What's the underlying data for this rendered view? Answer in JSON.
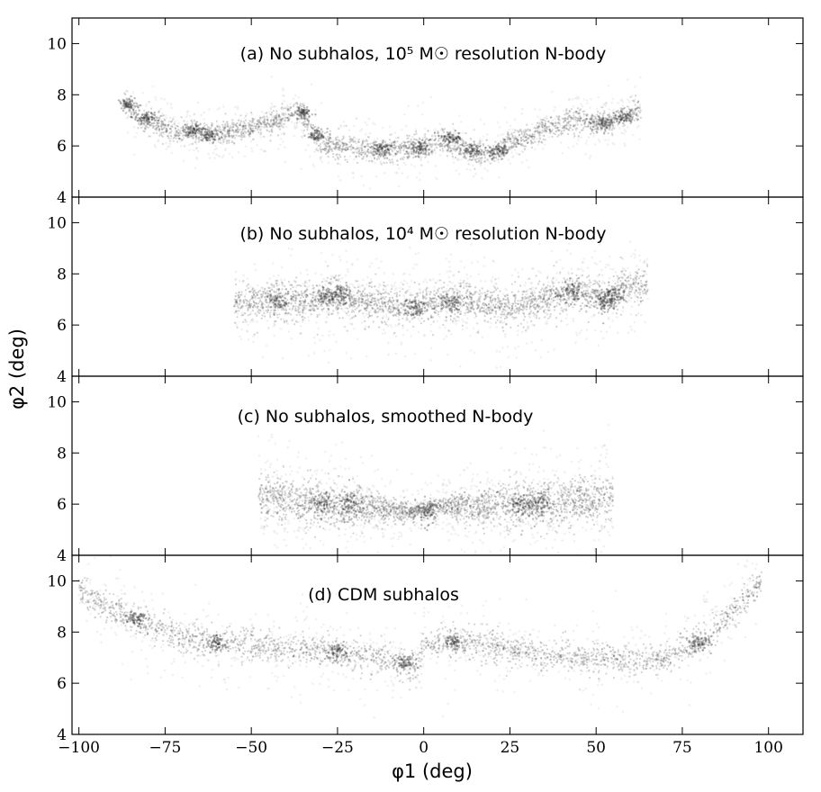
{
  "chart_data": {
    "type": "scatter",
    "xlabel": "φ1 (deg)",
    "ylabel": "φ2 (deg)",
    "xlim": [
      -102,
      110
    ],
    "x_ticks": [
      -100,
      -75,
      -50,
      -25,
      0,
      25,
      50,
      75,
      100
    ],
    "x_tick_labels": [
      "−100",
      "−75",
      "−50",
      "−25",
      "0",
      "25",
      "50",
      "75",
      "100"
    ],
    "grid": false,
    "legend": "none",
    "point_color": "#3a3a3a",
    "panels": [
      {
        "id": "a",
        "title": "(a) No subhalos, 10⁵ M☉ resolution N-body",
        "ylim": [
          4,
          11
        ],
        "y_ticks": [
          4,
          6,
          8,
          10
        ],
        "track": [
          [
            -87,
            7.7
          ],
          [
            -83,
            7.1
          ],
          [
            -78,
            6.9
          ],
          [
            -73,
            6.5
          ],
          [
            -68,
            6.6
          ],
          [
            -60,
            6.5
          ],
          [
            -50,
            6.7
          ],
          [
            -42,
            7.0
          ],
          [
            -36,
            7.4
          ],
          [
            -33,
            6.8
          ],
          [
            -30,
            6.1
          ],
          [
            -25,
            6.0
          ],
          [
            -18,
            5.9
          ],
          [
            -10,
            5.8
          ],
          [
            -5,
            5.9
          ],
          [
            0,
            6.0
          ],
          [
            5,
            6.2
          ],
          [
            10,
            6.0
          ],
          [
            15,
            5.7
          ],
          [
            20,
            5.7
          ],
          [
            25,
            6.2
          ],
          [
            30,
            6.3
          ],
          [
            35,
            6.7
          ],
          [
            40,
            6.8
          ],
          [
            45,
            7.1
          ],
          [
            50,
            6.9
          ],
          [
            55,
            7.0
          ],
          [
            60,
            7.3
          ],
          [
            63,
            7.5
          ]
        ],
        "dense_knots": [
          [
            -86,
            7.6
          ],
          [
            -80,
            7.1
          ],
          [
            -67,
            6.6
          ],
          [
            -62,
            6.4
          ],
          [
            -35,
            7.3
          ],
          [
            -31,
            6.4
          ],
          [
            -12,
            5.9
          ],
          [
            -1,
            5.9
          ],
          [
            8,
            6.3
          ],
          [
            14,
            5.8
          ],
          [
            22,
            5.8
          ],
          [
            52,
            6.9
          ],
          [
            58,
            7.1
          ]
        ]
      },
      {
        "id": "b",
        "title": "(b) No subhalos, 10⁴ M☉ resolution N-body",
        "ylim": [
          4,
          11
        ],
        "y_ticks": [
          4,
          6,
          8,
          10
        ],
        "track": [
          [
            -55,
            6.8
          ],
          [
            -48,
            6.9
          ],
          [
            -40,
            7.0
          ],
          [
            -32,
            7.0
          ],
          [
            -25,
            7.1
          ],
          [
            -18,
            6.9
          ],
          [
            -10,
            6.8
          ],
          [
            -3,
            6.7
          ],
          [
            3,
            6.9
          ],
          [
            10,
            6.9
          ],
          [
            18,
            6.8
          ],
          [
            25,
            6.7
          ],
          [
            32,
            6.9
          ],
          [
            40,
            7.2
          ],
          [
            45,
            7.4
          ],
          [
            52,
            7.0
          ],
          [
            58,
            7.4
          ],
          [
            65,
            7.6
          ]
        ],
        "dense_knots": [
          [
            -42,
            6.9
          ],
          [
            -28,
            7.1
          ],
          [
            -24,
            7.2
          ],
          [
            -2,
            6.7
          ],
          [
            8,
            6.9
          ],
          [
            43,
            7.3
          ],
          [
            53,
            6.9
          ],
          [
            55,
            7.1
          ]
        ]
      },
      {
        "id": "c",
        "title": "(c) No subhalos, smoothed N-body",
        "ylim": [
          4,
          11
        ],
        "y_ticks": [
          4,
          6,
          8,
          10
        ],
        "track": [
          [
            -48,
            6.4
          ],
          [
            -40,
            6.2
          ],
          [
            -30,
            6.0
          ],
          [
            -20,
            5.9
          ],
          [
            -10,
            5.8
          ],
          [
            -3,
            5.7
          ],
          [
            0,
            5.8
          ],
          [
            3,
            5.9
          ],
          [
            10,
            5.9
          ],
          [
            20,
            5.9
          ],
          [
            30,
            6.0
          ],
          [
            40,
            6.1
          ],
          [
            50,
            6.2
          ],
          [
            55,
            6.3
          ]
        ],
        "dense_knots": [
          [
            -30,
            6.0
          ],
          [
            -22,
            5.9
          ],
          [
            1,
            5.75
          ],
          [
            28,
            6.0
          ],
          [
            34,
            6.0
          ]
        ]
      },
      {
        "id": "d",
        "title": "(d) CDM subhalos",
        "ylim": [
          4,
          11
        ],
        "y_ticks": [
          4,
          6,
          8,
          10
        ],
        "track": [
          [
            -100,
            9.6
          ],
          [
            -92,
            9.0
          ],
          [
            -85,
            8.6
          ],
          [
            -78,
            8.1
          ],
          [
            -70,
            7.7
          ],
          [
            -60,
            7.6
          ],
          [
            -50,
            7.5
          ],
          [
            -40,
            7.3
          ],
          [
            -30,
            7.3
          ],
          [
            -20,
            7.1
          ],
          [
            -10,
            6.9
          ],
          [
            -2,
            6.5
          ],
          [
            0,
            7.4
          ],
          [
            5,
            7.6
          ],
          [
            12,
            7.6
          ],
          [
            20,
            7.4
          ],
          [
            30,
            7.2
          ],
          [
            45,
            7.0
          ],
          [
            60,
            6.9
          ],
          [
            70,
            7.0
          ],
          [
            78,
            7.4
          ],
          [
            85,
            8.2
          ],
          [
            92,
            9.1
          ],
          [
            98,
            10.0
          ]
        ],
        "dense_knots": [
          [
            -83,
            8.5
          ],
          [
            -60,
            7.6
          ],
          [
            -25,
            7.2
          ],
          [
            -5,
            6.8
          ],
          [
            8,
            7.6
          ],
          [
            80,
            7.6
          ]
        ]
      }
    ]
  }
}
